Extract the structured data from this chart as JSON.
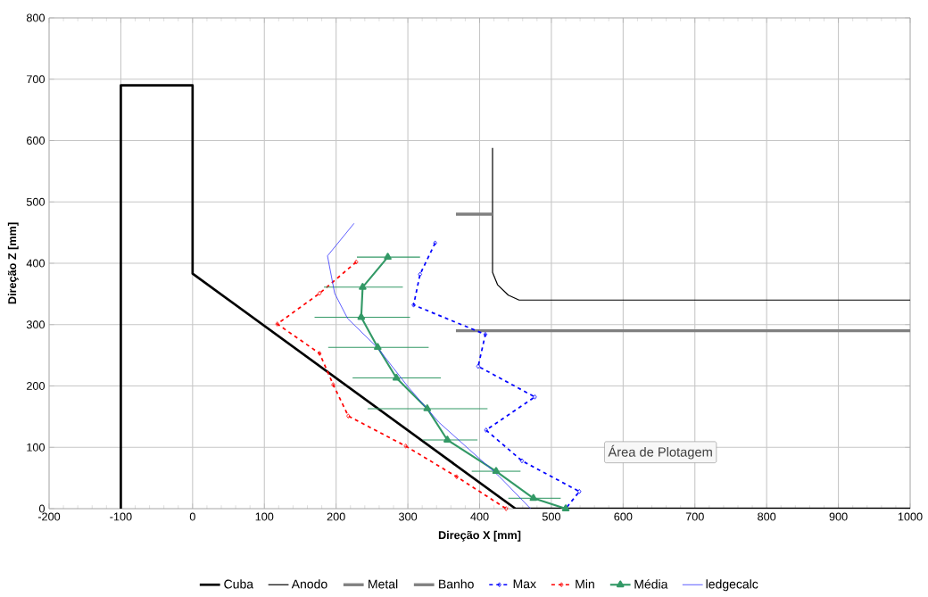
{
  "chart_data": {
    "type": "line",
    "xlabel": "Direção X [mm]",
    "ylabel": "Direção Z [mm]",
    "xlim": [
      -200,
      1000
    ],
    "xticks": [
      -200,
      -100,
      0,
      100,
      200,
      300,
      400,
      500,
      600,
      700,
      800,
      900,
      1000
    ],
    "ylim": [
      0,
      800
    ],
    "yticks": [
      0,
      100,
      200,
      300,
      400,
      500,
      600,
      700,
      800
    ],
    "grid": true,
    "legend": "bottom",
    "annotations": [
      "Área de Plotagem"
    ],
    "series": [
      {
        "name": "Cuba",
        "color": "#000000",
        "line_style": "solid",
        "marker": "none",
        "x": [
          -100,
          -100,
          0,
          0,
          450,
          1000
        ],
        "values": [
          0,
          690,
          690,
          383,
          0,
          0
        ]
      },
      {
        "name": "Anodo",
        "color": "#000000",
        "line_style": "solid",
        "marker": "none",
        "x": [
          418,
          418,
          425,
          440,
          455,
          1000
        ],
        "values": [
          588,
          385,
          365,
          348,
          340,
          340
        ]
      },
      {
        "name": "Metal",
        "color": "#808080",
        "line_style": "solid",
        "marker": "none",
        "x": [
          367,
          418
        ],
        "values": [
          480,
          480
        ]
      },
      {
        "name": "Banho",
        "color": "#808080",
        "line_style": "solid",
        "marker": "none",
        "x": [
          367,
          1000
        ],
        "values": [
          290,
          290
        ]
      },
      {
        "name": "Max",
        "color": "#0000ff",
        "line_style": "dashed",
        "marker": "diamond",
        "x": [
          338,
          317,
          308,
          408,
          398,
          477,
          409,
          459,
          539,
          520
        ],
        "values": [
          433,
          382,
          332,
          284,
          232,
          182,
          128,
          78,
          28,
          0
        ]
      },
      {
        "name": "Min",
        "color": "#ff0000",
        "line_style": "dashed",
        "marker": "diamond",
        "x": [
          228,
          177,
          118,
          177,
          196,
          217,
          297,
          368,
          437
        ],
        "values": [
          402,
          351,
          301,
          253,
          202,
          151,
          102,
          52,
          0
        ]
      },
      {
        "name": "Média",
        "color": "#339966",
        "line_style": "solid",
        "marker": "triangle",
        "x": [
          272,
          237,
          235,
          258,
          284,
          327,
          355,
          423,
          475,
          520
        ],
        "values": [
          410,
          361,
          312,
          263,
          213,
          163,
          112,
          61,
          17,
          0
        ],
        "xerrors": [
          [
            229,
            317
          ],
          [
            183,
            293
          ],
          [
            170,
            303
          ],
          [
            189,
            329
          ],
          [
            223,
            346
          ],
          [
            244,
            411
          ],
          [
            321,
            397
          ],
          [
            389,
            457
          ],
          [
            440,
            513
          ],
          null
        ]
      },
      {
        "name": "ledgecalc",
        "color": "#3333ff",
        "line_style": "solid",
        "marker": "none",
        "x": [
          225,
          188,
          198,
          216,
          258,
          300,
          343,
          385,
          427,
          471
        ],
        "values": [
          465,
          412,
          351,
          310,
          262,
          199,
          141,
          97,
          53,
          0
        ]
      }
    ]
  }
}
